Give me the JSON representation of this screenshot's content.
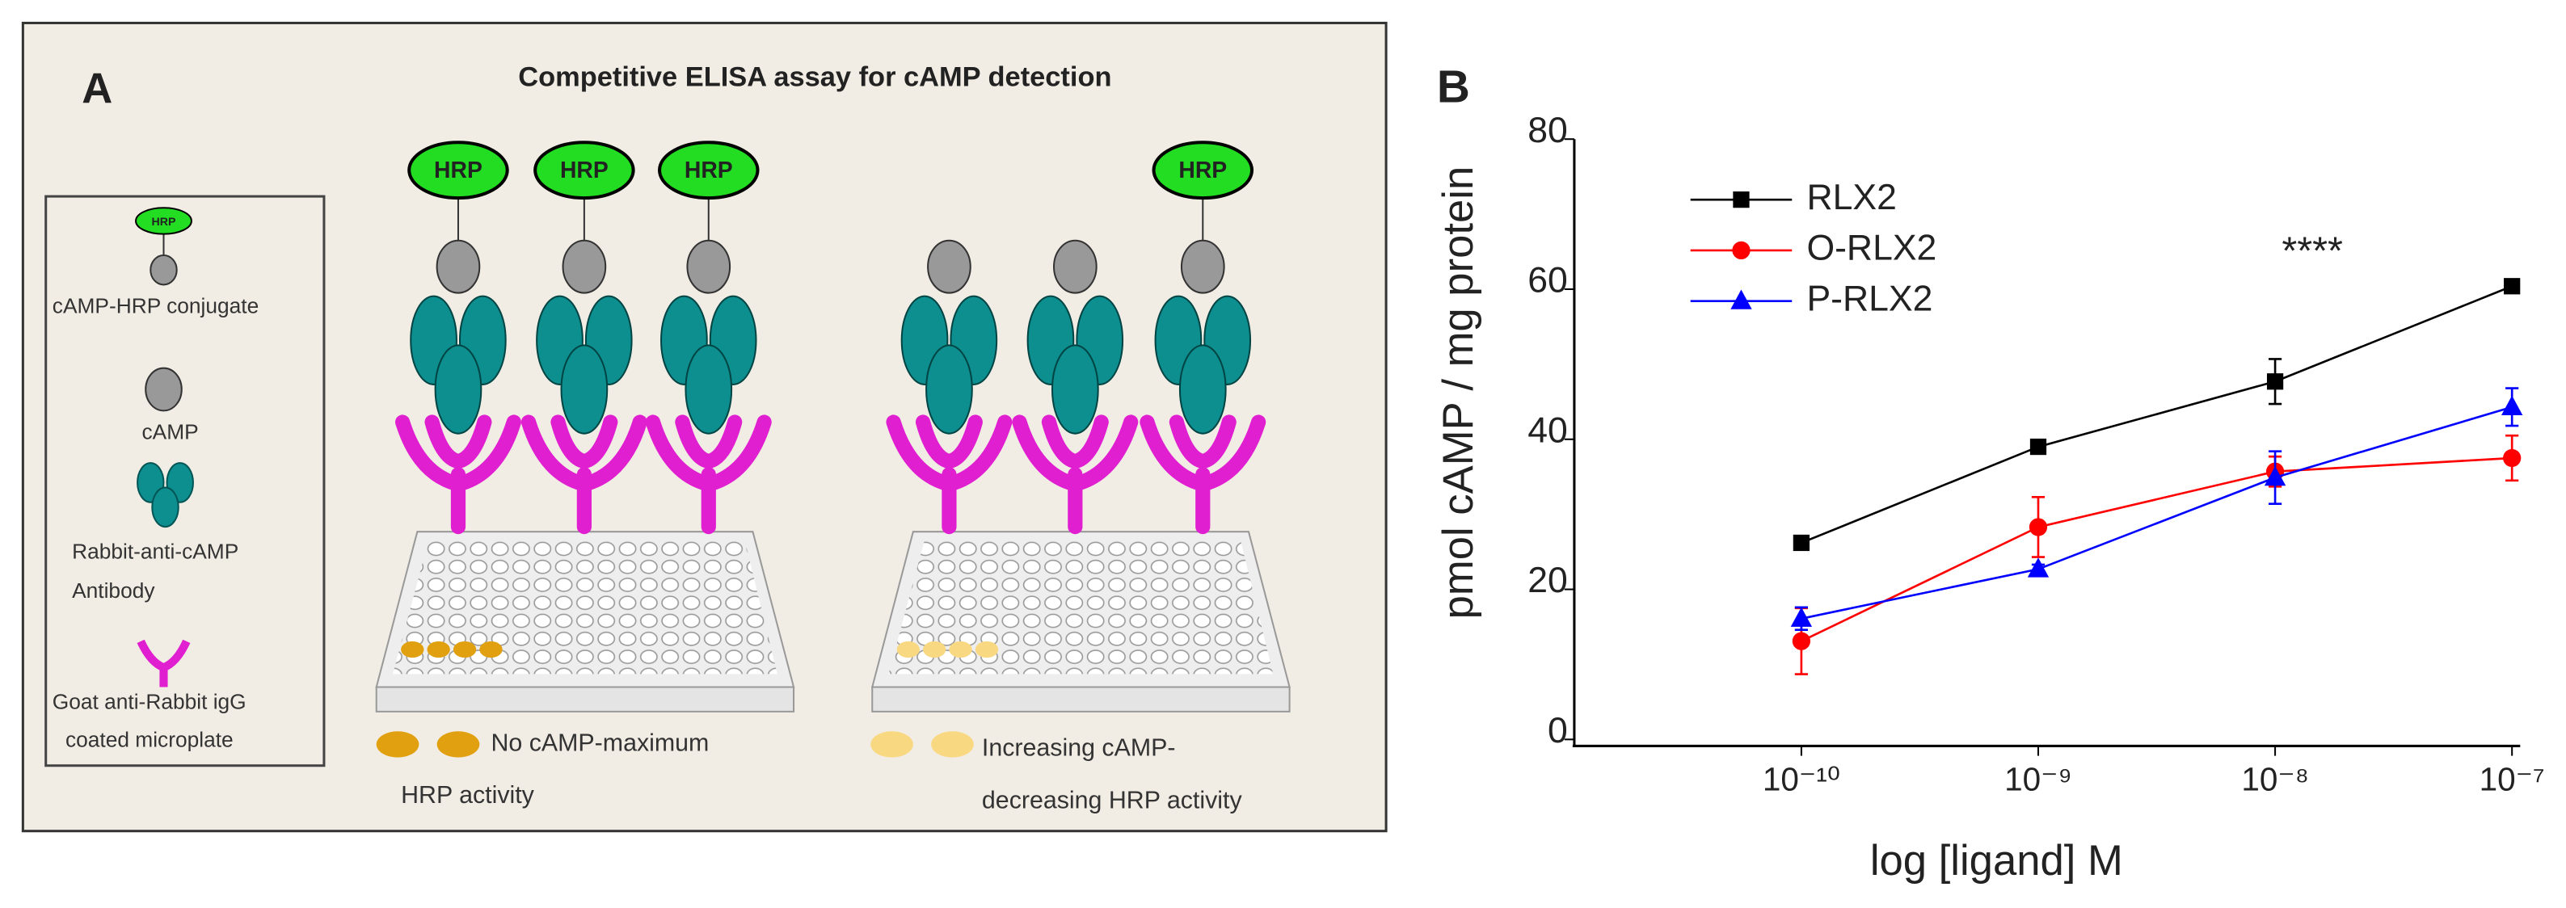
{
  "diagram": {
    "panel_label": "A",
    "title": "Competitive ELISA assay for cAMP detection",
    "hrp_label": "HRP",
    "legend": {
      "conjugate": "cAMP-HRP conjugate",
      "camp": "cAMP",
      "antibody": [
        "Rabbit-anti-cAMP",
        "Antibody"
      ],
      "microplate": [
        "Goat anti-Rabbit igG",
        "coated microplate"
      ]
    },
    "left_caption": [
      "No cAMP-maximum",
      "HRP activity"
    ],
    "right_caption": [
      "Increasing cAMP-",
      "decreasing HRP activity"
    ]
  },
  "chart_data": {
    "type": "line",
    "panel_label": "B",
    "xlabel": "log [ligand] M",
    "ylabel": "pmol cAMP / mg protein",
    "annotation": "****",
    "xscale": "log",
    "x": [
      1e-10,
      1e-09,
      1e-08,
      1e-07
    ],
    "xlim": [
      1.1e-11,
      1e-07
    ],
    "xticks": [
      {
        "value": 1e-10,
        "label": "10⁻¹⁰"
      },
      {
        "value": 1e-09,
        "label": "10⁻⁹"
      },
      {
        "value": 1e-08,
        "label": "10⁻⁸"
      },
      {
        "value": 1e-07,
        "label": "10⁻⁷"
      }
    ],
    "ylim": [
      0,
      80
    ],
    "yticks": [
      0,
      20,
      40,
      60,
      80
    ],
    "grid": false,
    "legend": "upper left",
    "series": [
      {
        "name": "RLX2",
        "color": "#000000",
        "marker": "square",
        "values": [
          26.2,
          39,
          47.7,
          60.4
        ],
        "errors": [
          0.5,
          0.8,
          3,
          0.5
        ]
      },
      {
        "name": "O-RLX2",
        "color": "#ff0000",
        "marker": "circle",
        "values": [
          13.1,
          28.3,
          35.7,
          37.5
        ],
        "errors": [
          4.4,
          4,
          2,
          3
        ]
      },
      {
        "name": "P-RLX2",
        "color": "#0000ff",
        "marker": "triangle",
        "values": [
          16.1,
          22.7,
          34.9,
          44.3
        ],
        "errors": [
          1.5,
          0.6,
          3.5,
          2.5
        ]
      }
    ]
  }
}
